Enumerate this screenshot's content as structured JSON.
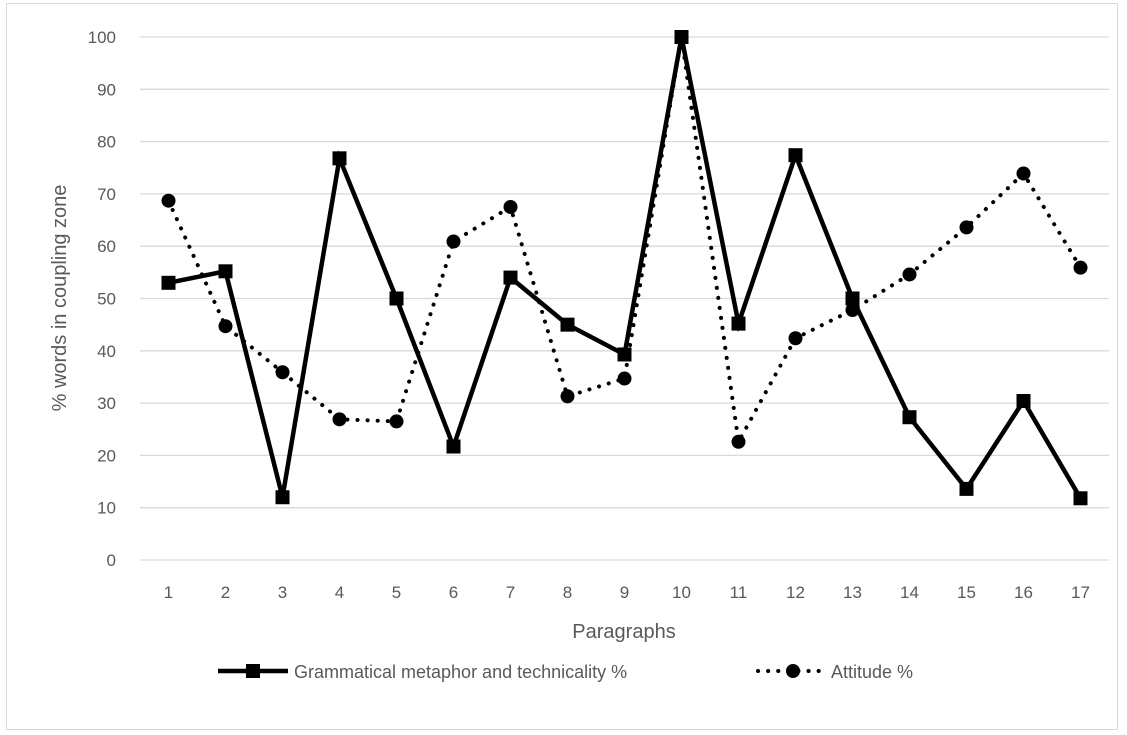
{
  "chart_data": {
    "type": "line",
    "categories": [
      "1",
      "2",
      "3",
      "4",
      "5",
      "6",
      "7",
      "8",
      "9",
      "10",
      "11",
      "12",
      "13",
      "14",
      "15",
      "16",
      "17"
    ],
    "series": [
      {
        "name": "Grammatical metaphor and technicality %",
        "values": [
          53,
          55.2,
          12,
          76.8,
          50,
          21.7,
          54,
          45,
          39.3,
          100,
          45.2,
          77.4,
          50,
          27.3,
          13.6,
          30.4,
          11.8
        ],
        "line_style": "solid",
        "marker": "square",
        "color": "#000000"
      },
      {
        "name": "Attitude %",
        "values": [
          68.7,
          44.7,
          35.9,
          26.9,
          26.5,
          60.9,
          67.5,
          31.3,
          34.7,
          100,
          22.6,
          42.4,
          47.8,
          54.6,
          63.6,
          73.9,
          55.9
        ],
        "line_style": "dotted",
        "marker": "circle",
        "color": "#000000"
      }
    ],
    "xlabel": "Paragraphs",
    "ylabel": "% words in coupling zone",
    "ylim": [
      0,
      100
    ],
    "yticks": [
      "0",
      "10",
      "20",
      "30",
      "40",
      "50",
      "60",
      "70",
      "80",
      "90",
      "100"
    ],
    "grid": true,
    "legend_position": "bottom",
    "colors": {
      "grid": "#d9d9d9",
      "text": "#595959",
      "series": "#000000"
    }
  }
}
